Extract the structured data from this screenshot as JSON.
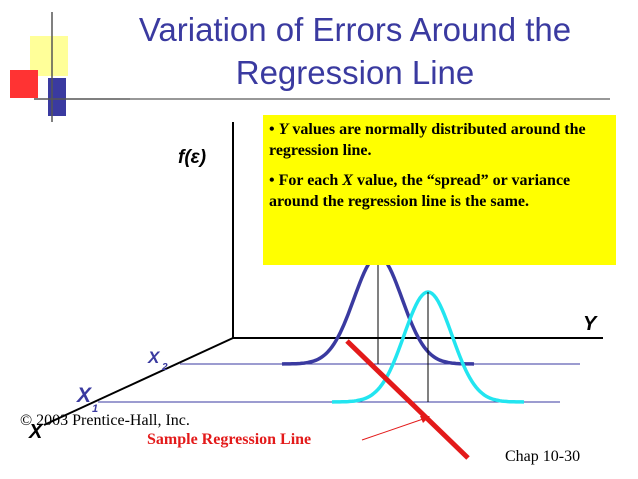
{
  "slide": {
    "title_line1": "Variation of Errors Around the",
    "title_line2": "Regression Line",
    "callout": {
      "bullet1_var": "Y",
      "bullet1_text": " values are normally distributed around the regression line.",
      "bullet2_pre": "For each ",
      "bullet2_var": "X",
      "bullet2_text": " value, the “spread” or variance around the regression line is the same."
    },
    "footer": {
      "copyright": "© 2003 Prentice-Hall, Inc.",
      "chapter": "Chap 10-30"
    }
  },
  "diagram": {
    "f_axis_label": "f(ε)",
    "y_axis_label": "Y",
    "x_axis_label": "X",
    "x1_label": "X",
    "x1_sub": "1",
    "x2_label": "X",
    "x2_sub": "2",
    "regression_label": "Sample Regression Line",
    "colors": {
      "title": "#3a3aa0",
      "callout_bg": "#ffff00",
      "curve1": "#3a3aa0",
      "curve2": "#22e5f0",
      "regression": "#e31a1a",
      "axes": "#000000",
      "guides": "#3a3aa0"
    }
  }
}
